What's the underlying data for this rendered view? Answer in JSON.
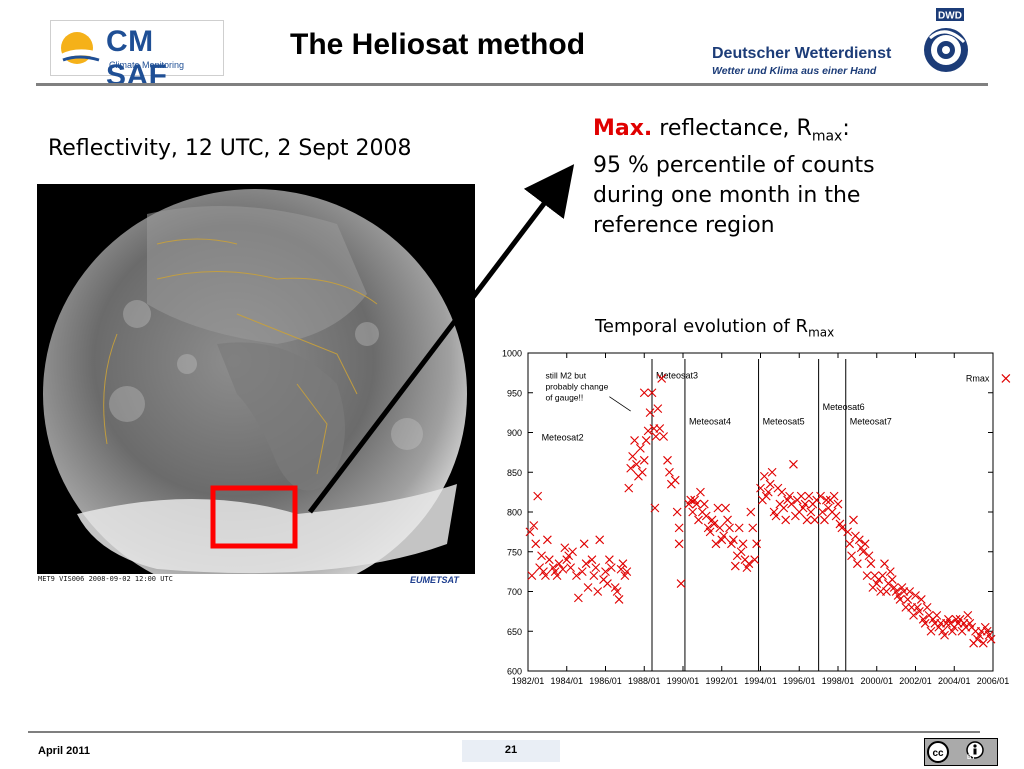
{
  "header": {
    "logo_text": "CM SAF",
    "logo_subtext": "Climate Monitoring",
    "title": "The Heliosat method",
    "dwd_name": "Deutscher Wetterdienst",
    "dwd_tagline": "Wetter und Klima aus einer Hand",
    "dwd_abbrev": "DWD"
  },
  "left_panel": {
    "heading": "Reflectivity, 12 UTC, 2 Sept 2008",
    "image_caption": "MET9 VIS006 2008-09-02 12:00 UTC",
    "image_logo": "EUMETSAT"
  },
  "right_panel": {
    "max_label": "Max.",
    "line1_rest": " reflectance, R",
    "line1_sub": "max",
    "line1_end": ":",
    "line2": "95 % percentile of counts",
    "line3": "during one month in the",
    "line4": "reference region",
    "temporal_heading": "Temporal evolution of R",
    "temporal_sub": "max"
  },
  "footer": {
    "date": "April 2011",
    "page_number": "21",
    "license": "BY"
  },
  "colors": {
    "accent_red": "#e00000",
    "brand_blue": "#1f4f95",
    "marker_red": "#e00000"
  },
  "chart_data": {
    "type": "scatter",
    "ylim": [
      600,
      1000
    ],
    "yticks": [
      600,
      650,
      700,
      750,
      800,
      850,
      900,
      950,
      1000
    ],
    "xlim": [
      1982.0,
      2006.0
    ],
    "xticks": [
      "1982/01",
      "1984/01",
      "1986/01",
      "1988/01",
      "1990/01",
      "1992/01",
      "1994/01",
      "1996/01",
      "1998/01",
      "2000/01",
      "2002/01",
      "2004/01",
      "2006/01"
    ],
    "legend": "Rmax",
    "legend_position": "top-right",
    "annotation": [
      "still M2 but",
      "probably change",
      "of gauge!!"
    ],
    "satellite_breaks": [
      {
        "x": 1988.4,
        "label": "Meteosat3",
        "label_y": 968
      },
      {
        "x": 1990.1,
        "label": "Meteosat4",
        "label_y": 910
      },
      {
        "x": 1993.9,
        "label": "Meteosat5",
        "label_y": 910
      },
      {
        "x": 1997.0,
        "label": "Meteosat6",
        "label_y": 928
      },
      {
        "x": 1998.4,
        "label": "Meteosat7",
        "label_y": 910
      }
    ],
    "region_labels": [
      {
        "x": 1982.7,
        "y": 890,
        "label": "Meteosat2"
      }
    ],
    "series": [
      {
        "name": "Rmax",
        "points": [
          [
            1982.1,
            775
          ],
          [
            1982.2,
            720
          ],
          [
            1982.3,
            783
          ],
          [
            1982.4,
            760
          ],
          [
            1982.5,
            820
          ],
          [
            1982.6,
            730
          ],
          [
            1982.7,
            745
          ],
          [
            1982.8,
            725
          ],
          [
            1982.9,
            720
          ],
          [
            1983.0,
            765
          ],
          [
            1983.1,
            740
          ],
          [
            1983.3,
            730
          ],
          [
            1983.4,
            725
          ],
          [
            1983.5,
            720
          ],
          [
            1983.6,
            735
          ],
          [
            1983.8,
            728
          ],
          [
            1983.9,
            755
          ],
          [
            1984.0,
            740
          ],
          [
            1984.1,
            745
          ],
          [
            1984.2,
            730
          ],
          [
            1984.3,
            750
          ],
          [
            1984.5,
            720
          ],
          [
            1984.6,
            692
          ],
          [
            1984.8,
            725
          ],
          [
            1984.9,
            760
          ],
          [
            1985.0,
            735
          ],
          [
            1985.1,
            705
          ],
          [
            1985.3,
            740
          ],
          [
            1985.4,
            720
          ],
          [
            1985.5,
            730
          ],
          [
            1985.6,
            700
          ],
          [
            1985.7,
            765
          ],
          [
            1985.9,
            715
          ],
          [
            1986.0,
            725
          ],
          [
            1986.1,
            710
          ],
          [
            1986.2,
            740
          ],
          [
            1986.3,
            730
          ],
          [
            1986.5,
            705
          ],
          [
            1986.6,
            700
          ],
          [
            1986.7,
            690
          ],
          [
            1986.8,
            728
          ],
          [
            1986.9,
            735
          ],
          [
            1987.0,
            720
          ],
          [
            1987.1,
            725
          ],
          [
            1987.2,
            830
          ],
          [
            1987.3,
            855
          ],
          [
            1987.4,
            870
          ],
          [
            1987.5,
            890
          ],
          [
            1987.6,
            860
          ],
          [
            1987.7,
            845
          ],
          [
            1987.8,
            880
          ],
          [
            1987.9,
            850
          ],
          [
            1988.0,
            865
          ],
          [
            1988.1,
            890
          ],
          [
            1988.2,
            902
          ],
          [
            1988.3,
            925
          ],
          [
            1988.4,
            950
          ],
          [
            1988.5,
            905
          ],
          [
            1988.6,
            895
          ],
          [
            1988.7,
            930
          ],
          [
            1988.8,
            905
          ],
          [
            1988.9,
            968
          ],
          [
            1989.0,
            895
          ],
          [
            1988.55,
            805
          ],
          [
            1988.0,
            950
          ],
          [
            1989.2,
            865
          ],
          [
            1989.3,
            850
          ],
          [
            1989.4,
            835
          ],
          [
            1989.6,
            840
          ],
          [
            1989.7,
            800
          ],
          [
            1989.8,
            760
          ],
          [
            1989.9,
            710
          ],
          [
            1989.8,
            780
          ],
          [
            1990.3,
            810
          ],
          [
            1990.4,
            815
          ],
          [
            1990.5,
            800
          ],
          [
            1990.6,
            815
          ],
          [
            1990.7,
            810
          ],
          [
            1990.8,
            790
          ],
          [
            1990.9,
            825
          ],
          [
            1991.0,
            800
          ],
          [
            1991.1,
            810
          ],
          [
            1991.2,
            795
          ],
          [
            1991.3,
            780
          ],
          [
            1991.4,
            775
          ],
          [
            1991.5,
            790
          ],
          [
            1991.6,
            785
          ],
          [
            1991.7,
            760
          ],
          [
            1991.8,
            805
          ],
          [
            1991.9,
            780
          ],
          [
            1992.0,
            765
          ],
          [
            1992.1,
            770
          ],
          [
            1992.2,
            805
          ],
          [
            1992.3,
            790
          ],
          [
            1992.4,
            780
          ],
          [
            1992.5,
            760
          ],
          [
            1992.6,
            765
          ],
          [
            1992.7,
            732
          ],
          [
            1992.8,
            745
          ],
          [
            1992.9,
            780
          ],
          [
            1993.0,
            750
          ],
          [
            1993.1,
            760
          ],
          [
            1993.2,
            740
          ],
          [
            1993.3,
            730
          ],
          [
            1993.4,
            735
          ],
          [
            1993.5,
            800
          ],
          [
            1993.6,
            780
          ],
          [
            1993.7,
            740
          ],
          [
            1993.8,
            760
          ],
          [
            1994.0,
            830
          ],
          [
            1994.1,
            815
          ],
          [
            1994.2,
            845
          ],
          [
            1994.3,
            820
          ],
          [
            1994.4,
            825
          ],
          [
            1994.5,
            835
          ],
          [
            1994.6,
            850
          ],
          [
            1994.7,
            800
          ],
          [
            1994.8,
            795
          ],
          [
            1994.9,
            830
          ],
          [
            1995.0,
            810
          ],
          [
            1995.1,
            825
          ],
          [
            1995.2,
            805
          ],
          [
            1995.3,
            790
          ],
          [
            1995.4,
            815
          ],
          [
            1995.5,
            820
          ],
          [
            1995.6,
            810
          ],
          [
            1995.7,
            860
          ],
          [
            1995.8,
            795
          ],
          [
            1995.9,
            815
          ],
          [
            1996.0,
            800
          ],
          [
            1996.1,
            820
          ],
          [
            1996.2,
            805
          ],
          [
            1996.3,
            810
          ],
          [
            1996.4,
            790
          ],
          [
            1996.5,
            820
          ],
          [
            1996.6,
            800
          ],
          [
            1996.7,
            810
          ],
          [
            1996.8,
            790
          ],
          [
            1996.9,
            815
          ],
          [
            1997.1,
            820
          ],
          [
            1997.2,
            800
          ],
          [
            1997.3,
            790
          ],
          [
            1997.4,
            815
          ],
          [
            1997.5,
            805
          ],
          [
            1997.6,
            815
          ],
          [
            1997.7,
            800
          ],
          [
            1997.8,
            820
          ],
          [
            1997.9,
            795
          ],
          [
            1998.0,
            810
          ],
          [
            1998.1,
            785
          ],
          [
            1998.2,
            780
          ],
          [
            1998.5,
            775
          ],
          [
            1998.6,
            760
          ],
          [
            1998.7,
            745
          ],
          [
            1998.8,
            790
          ],
          [
            1998.9,
            770
          ],
          [
            1999.0,
            735
          ],
          [
            1999.1,
            765
          ],
          [
            1999.2,
            755
          ],
          [
            1999.3,
            750
          ],
          [
            1999.4,
            760
          ],
          [
            1999.5,
            720
          ],
          [
            1999.6,
            745
          ],
          [
            1999.7,
            735
          ],
          [
            1999.8,
            705
          ],
          [
            1999.9,
            720
          ],
          [
            2000.0,
            710
          ],
          [
            2000.1,
            715
          ],
          [
            2000.2,
            700
          ],
          [
            2000.3,
            720
          ],
          [
            2000.4,
            735
          ],
          [
            2000.5,
            700
          ],
          [
            2000.6,
            710
          ],
          [
            2000.7,
            725
          ],
          [
            2000.8,
            715
          ],
          [
            2000.9,
            705
          ],
          [
            2001.0,
            700
          ],
          [
            2001.1,
            695
          ],
          [
            2001.2,
            690
          ],
          [
            2001.3,
            705
          ],
          [
            2001.4,
            700
          ],
          [
            2001.5,
            680
          ],
          [
            2001.6,
            690
          ],
          [
            2001.7,
            700
          ],
          [
            2001.8,
            680
          ],
          [
            2001.9,
            670
          ],
          [
            2002.0,
            695
          ],
          [
            2002.1,
            680
          ],
          [
            2002.2,
            675
          ],
          [
            2002.3,
            690
          ],
          [
            2002.4,
            665
          ],
          [
            2002.5,
            660
          ],
          [
            2002.6,
            680
          ],
          [
            2002.7,
            670
          ],
          [
            2002.8,
            650
          ],
          [
            2002.9,
            665
          ],
          [
            2003.0,
            660
          ],
          [
            2003.1,
            670
          ],
          [
            2003.2,
            655
          ],
          [
            2003.3,
            660
          ],
          [
            2003.4,
            650
          ],
          [
            2003.5,
            645
          ],
          [
            2003.6,
            660
          ],
          [
            2003.7,
            665
          ],
          [
            2003.8,
            660
          ],
          [
            2003.9,
            650
          ],
          [
            2004.0,
            655
          ],
          [
            2004.1,
            665
          ],
          [
            2004.2,
            660
          ],
          [
            2004.3,
            665
          ],
          [
            2004.4,
            650
          ],
          [
            2004.5,
            660
          ],
          [
            2004.6,
            655
          ],
          [
            2004.7,
            670
          ],
          [
            2004.8,
            660
          ],
          [
            2004.9,
            655
          ],
          [
            2005.0,
            635
          ],
          [
            2005.1,
            650
          ],
          [
            2005.2,
            640
          ],
          [
            2005.3,
            645
          ],
          [
            2005.4,
            650
          ],
          [
            2005.5,
            635
          ],
          [
            2005.6,
            655
          ],
          [
            2005.7,
            650
          ],
          [
            2005.8,
            645
          ],
          [
            2005.9,
            640
          ]
        ]
      }
    ]
  }
}
